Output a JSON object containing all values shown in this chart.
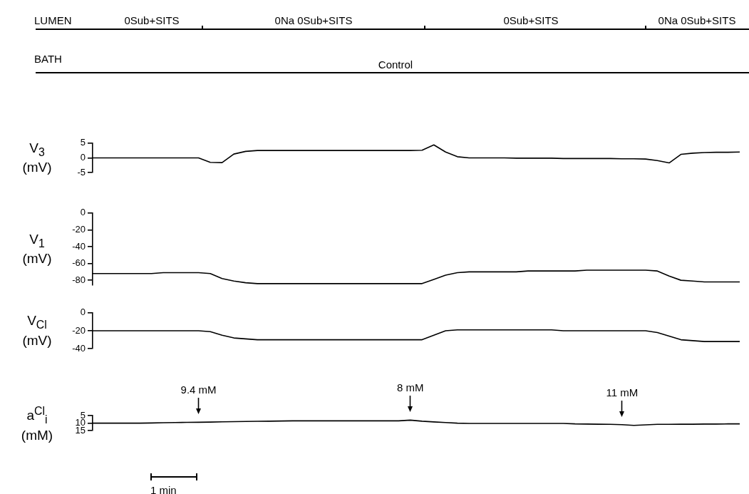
{
  "chart_data": [
    {
      "type": "other",
      "annotations": [
        "LUMEN",
        "0Sub+SITS",
        "0Na 0Sub+SITS",
        "0Sub+SITS",
        "0Na 0Sub+SITS",
        "BATH",
        "Control"
      ]
    },
    {
      "type": "line",
      "ylabel": "V$_{3}$ (mV)",
      "ylim": [
        -5,
        5
      ],
      "yticks": [
        -5,
        0,
        5
      ],
      "tick_labels": "y",
      "categories": [
        null,
        null,
        null,
        null,
        null,
        null,
        null,
        null,
        null,
        null,
        null,
        null,
        null,
        null,
        null,
        null,
        null,
        null,
        null,
        null,
        null,
        null,
        null,
        null,
        null,
        null,
        null,
        null,
        null,
        null,
        null,
        null,
        null,
        null,
        null,
        null,
        null,
        null,
        null,
        null,
        null,
        null,
        null,
        null,
        null,
        null,
        null,
        null,
        null,
        null,
        null,
        null,
        null,
        null,
        null,
        null
      ],
      "series": [
        {
          "color": "#000000",
          "values": [
            0,
            0,
            0,
            0,
            0,
            0,
            0,
            0,
            0,
            0,
            -1.5,
            -1.6,
            1.3,
            2.2,
            2.5,
            2.5,
            2.5,
            2.5,
            2.5,
            2.5,
            2.5,
            2.5,
            2.5,
            2.5,
            2.5,
            2.5,
            2.5,
            2.5,
            2.6,
            4.4,
            2,
            0.4,
            0,
            0,
            0,
            0,
            -0.1,
            -0.1,
            -0.1,
            -0.1,
            -0.2,
            -0.2,
            -0.2,
            -0.2,
            -0.2,
            -0.3,
            -0.3,
            -0.4,
            -0.9,
            -1.7,
            1.2,
            1.6,
            1.8,
            1.9,
            1.9,
            2
          ]
        }
      ]
    },
    {
      "type": "line",
      "ylabel": "V$_{1}$ (mV)",
      "ylim": [
        -86,
        0
      ],
      "yticks": [
        -80,
        -60,
        -40,
        -20,
        0
      ],
      "tick_labels": "y",
      "categories": [
        null,
        null,
        null,
        null,
        null,
        null,
        null,
        null,
        null,
        null,
        null,
        null,
        null,
        null,
        null,
        null,
        null,
        null,
        null,
        null,
        null,
        null,
        null,
        null,
        null,
        null,
        null,
        null,
        null,
        null,
        null,
        null,
        null,
        null,
        null,
        null,
        null,
        null,
        null,
        null,
        null,
        null,
        null,
        null,
        null,
        null,
        null,
        null,
        null,
        null,
        null,
        null,
        null,
        null,
        null,
        null
      ],
      "series": [
        {
          "color": "#000000",
          "values": [
            -72,
            -72,
            -72,
            -72,
            -72,
            -72,
            -71,
            -71,
            -71,
            -71,
            -72,
            -78,
            -81,
            -83,
            -84,
            -84,
            -84,
            -84,
            -84,
            -84,
            -84,
            -84,
            -84,
            -84,
            -84,
            -84,
            -84,
            -84,
            -84,
            -79,
            -74,
            -71,
            -70,
            -70,
            -70,
            -70,
            -70,
            -69,
            -69,
            -69,
            -69,
            -69,
            -68,
            -68,
            -68,
            -68,
            -68,
            -68,
            -69,
            -75,
            -80,
            -81,
            -82,
            -82,
            -82,
            -82
          ]
        }
      ]
    },
    {
      "type": "line",
      "ylabel": "V$_{Cl}$ (mV)",
      "ylim": [
        -40,
        0
      ],
      "yticks": [
        -40,
        -20,
        0
      ],
      "tick_labels": "y",
      "categories": [
        null,
        null,
        null,
        null,
        null,
        null,
        null,
        null,
        null,
        null,
        null,
        null,
        null,
        null,
        null,
        null,
        null,
        null,
        null,
        null,
        null,
        null,
        null,
        null,
        null,
        null,
        null,
        null,
        null,
        null,
        null,
        null,
        null,
        null,
        null,
        null,
        null,
        null,
        null,
        null,
        null,
        null,
        null,
        null,
        null,
        null,
        null,
        null,
        null,
        null,
        null,
        null,
        null,
        null,
        null,
        null
      ],
      "series": [
        {
          "color": "#000000",
          "values": [
            -20,
            -20,
            -20,
            -20,
            -20,
            -20,
            -20,
            -20,
            -20,
            -20,
            -21,
            -25,
            -28,
            -29,
            -30,
            -30,
            -30,
            -30,
            -30,
            -30,
            -30,
            -30,
            -30,
            -30,
            -30,
            -30,
            -30,
            -30,
            -30,
            -25,
            -20,
            -19,
            -19,
            -19,
            -19,
            -19,
            -19,
            -19,
            -19,
            -19,
            -20,
            -20,
            -20,
            -20,
            -20,
            -20,
            -20,
            -20,
            -22,
            -26,
            -30,
            -31,
            -32,
            -32,
            -32,
            -32
          ]
        }
      ]
    },
    {
      "type": "line",
      "ylabel": "a$^{Cl}$$_{i}$ (mM)",
      "ylim": [
        15,
        5
      ],
      "yticks": [
        5,
        10,
        15
      ],
      "tick_labels": "y",
      "categories": [
        null,
        null,
        null,
        null,
        null,
        null,
        null,
        null,
        null,
        null,
        null,
        null,
        null,
        null,
        null,
        null,
        null,
        null,
        null,
        null,
        null,
        null,
        null,
        null,
        null,
        null,
        null,
        null,
        null,
        null,
        null,
        null,
        null,
        null,
        null,
        null,
        null,
        null,
        null,
        null,
        null,
        null,
        null,
        null,
        null,
        null,
        null,
        null,
        null,
        null,
        null,
        null,
        null,
        null,
        null,
        null
      ],
      "series": [
        {
          "color": "#000000",
          "values": [
            10,
            10,
            10,
            10,
            10,
            9.9,
            9.7,
            9.6,
            9.5,
            9.4,
            9.3,
            9.1,
            9,
            8.9,
            8.8,
            8.7,
            8.6,
            8.5,
            8.5,
            8.5,
            8.5,
            8.5,
            8.5,
            8.5,
            8.5,
            8.5,
            8.5,
            8,
            8.7,
            9.2,
            9.6,
            10,
            10.2,
            10.2,
            10.2,
            10.2,
            10.2,
            10.2,
            10.2,
            10.2,
            10.2,
            10.5,
            10.6,
            10.7,
            10.8,
            11,
            11.5,
            11.1,
            10.8,
            10.8,
            10.7,
            10.7,
            10.6,
            10.6,
            10.5,
            10.5
          ]
        }
      ],
      "annotations": [
        {
          "text": "9.4 mM",
          "y": 9.4
        },
        {
          "text": "8 mM",
          "y": 8
        },
        {
          "text": "11 mM",
          "y": 11
        },
        "1 min"
      ]
    }
  ]
}
